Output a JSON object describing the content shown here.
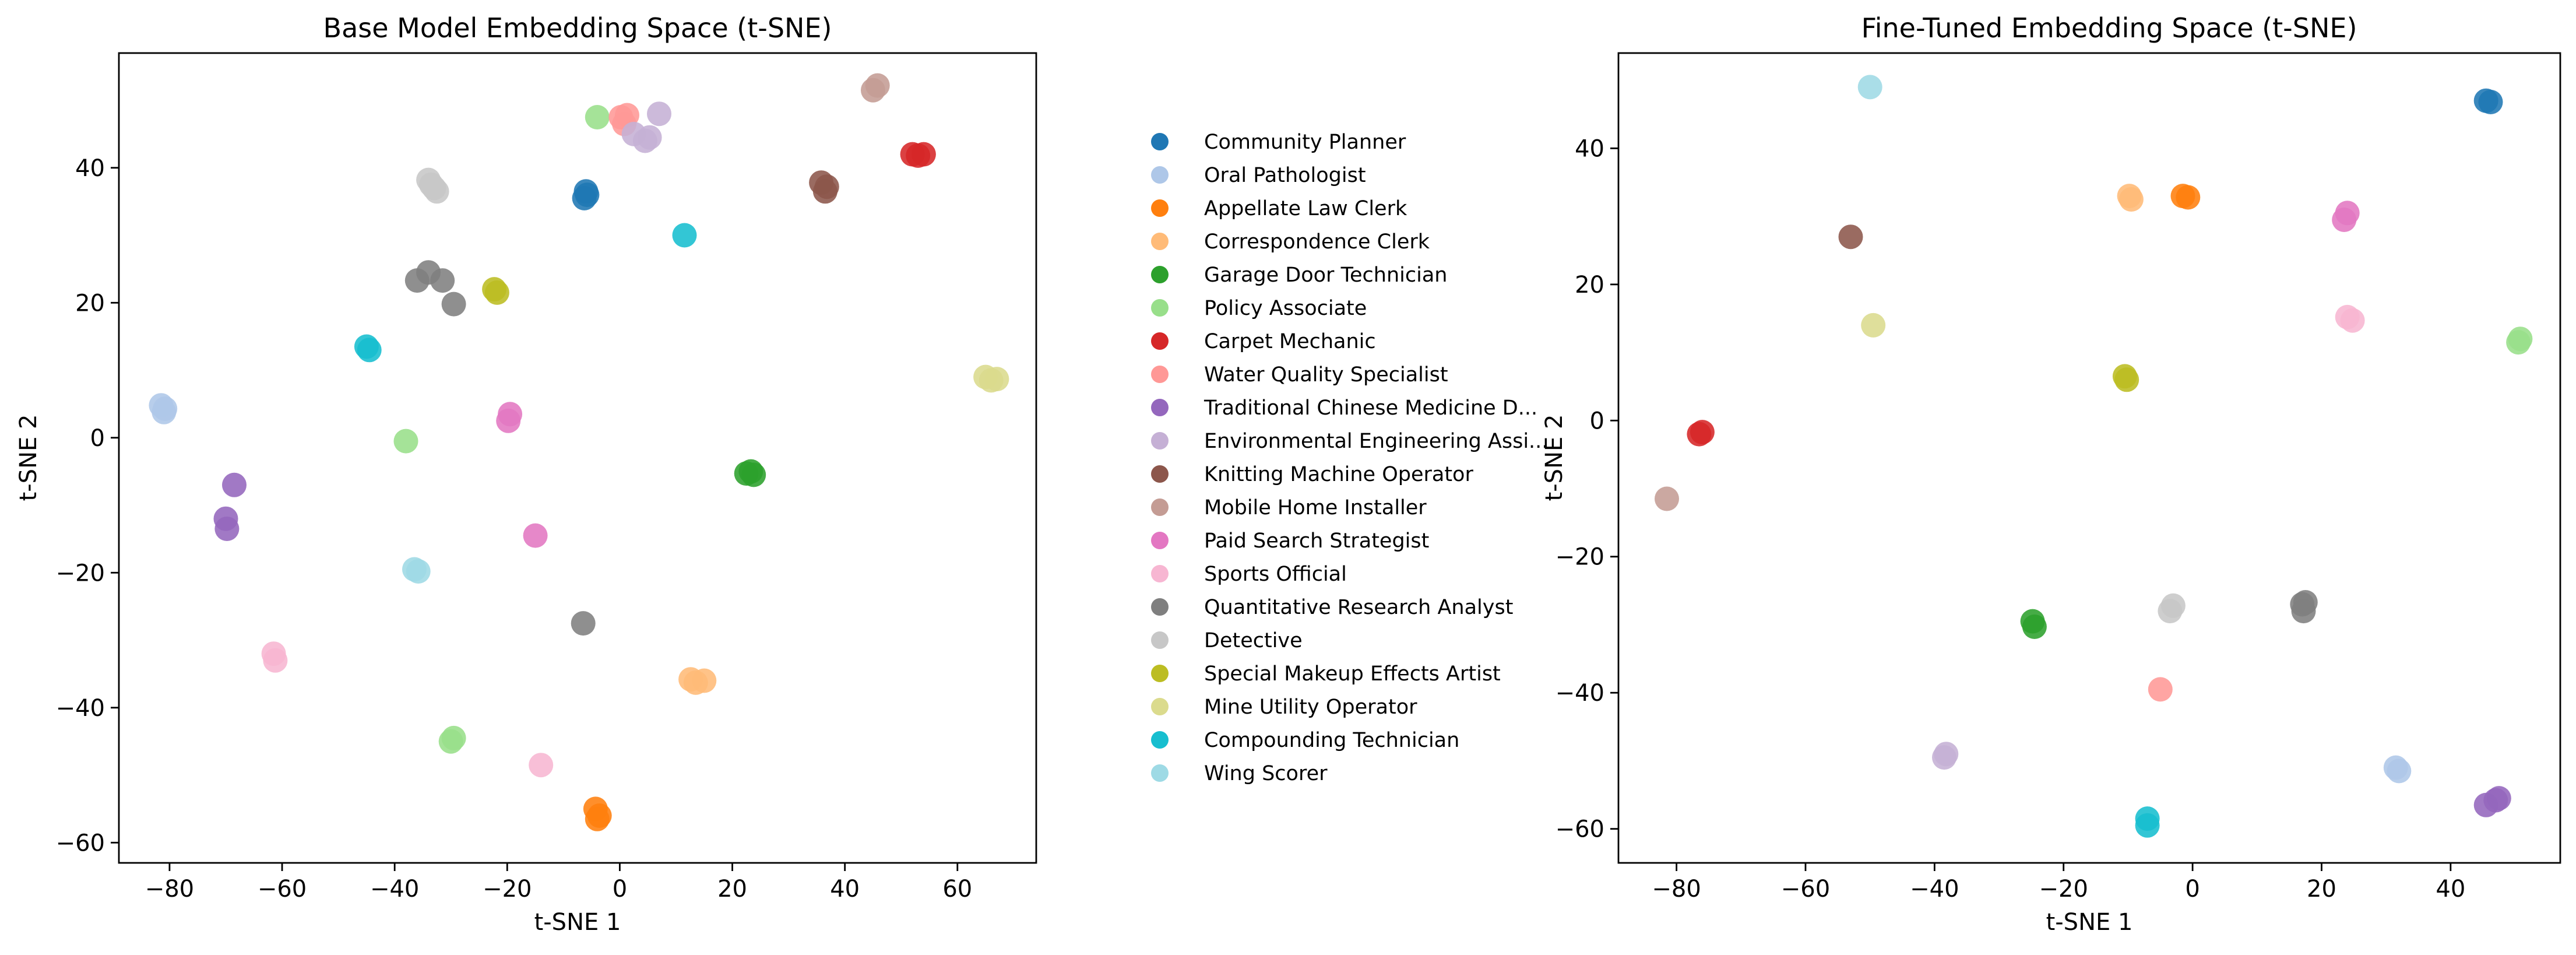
{
  "chart_data": [
    {
      "type": "scatter",
      "title": "Base Model Embedding Space (t-SNE)",
      "xlabel": "t-SNE 1",
      "ylabel": "t-SNE 2",
      "xlim": [
        -89,
        74
      ],
      "ylim": [
        -63,
        57
      ],
      "xticks": [
        -80,
        -60,
        -40,
        -20,
        0,
        20,
        40,
        60
      ],
      "yticks": [
        -60,
        -40,
        -20,
        0,
        20,
        40
      ],
      "xtick_labels": [
        "−80",
        "−60",
        "−40",
        "−20",
        "0",
        "20",
        "40",
        "60"
      ],
      "ytick_labels": [
        "−60",
        "−40",
        "−20",
        "0",
        "20",
        "40"
      ],
      "grid": false,
      "series": [
        {
          "name": "Community Planner",
          "color": "#1f77b4",
          "points": [
            [
              -6.3,
              35.5
            ],
            [
              -6.0,
              36.5
            ],
            [
              -5.8,
              36.0
            ]
          ]
        },
        {
          "name": "Oral Pathologist",
          "color": "#aec7e8",
          "points": [
            [
              -81.5,
              4.8
            ],
            [
              -81.0,
              3.8
            ],
            [
              -80.8,
              4.3
            ]
          ]
        },
        {
          "name": "Appellate Law Clerk",
          "color": "#ff7f0e",
          "points": [
            [
              -4.3,
              -55.0
            ],
            [
              -4.0,
              -56.5
            ],
            [
              -3.6,
              -56.0
            ]
          ]
        },
        {
          "name": "Correspondence Clerk",
          "color": "#ffbb78",
          "points": [
            [
              12.6,
              -35.8
            ],
            [
              13.5,
              -36.3
            ],
            [
              15.0,
              -36.0
            ]
          ]
        },
        {
          "name": "Garage Door Technician",
          "color": "#2ca02c",
          "points": [
            [
              22.5,
              -5.3
            ],
            [
              23.3,
              -5.0
            ],
            [
              23.8,
              -5.5
            ]
          ]
        },
        {
          "name": "Policy Associate",
          "color": "#98df8a",
          "points": [
            [
              -4.0,
              47.5
            ],
            [
              -38.0,
              -0.5
            ],
            [
              -30.0,
              -45.0
            ],
            [
              -29.5,
              -44.5
            ]
          ]
        },
        {
          "name": "Carpet Mechanic",
          "color": "#d62728",
          "points": [
            [
              52.0,
              42.0
            ],
            [
              53.0,
              41.8
            ],
            [
              54.0,
              42.0
            ]
          ]
        },
        {
          "name": "Water Quality Specialist",
          "color": "#ff9896",
          "points": [
            [
              0.2,
              47.5
            ],
            [
              0.8,
              46.5
            ],
            [
              1.3,
              47.8
            ]
          ]
        },
        {
          "name": "Traditional Chinese Medicine D...",
          "color": "#9467bd",
          "points": [
            [
              -70.0,
              -12.0
            ],
            [
              -69.8,
              -13.5
            ],
            [
              -68.5,
              -7.0
            ]
          ]
        },
        {
          "name": "Environmental Engineering Assi...",
          "color": "#c5b0d5",
          "points": [
            [
              2.5,
              45.0
            ],
            [
              4.5,
              44.0
            ],
            [
              5.3,
              44.5
            ],
            [
              7.0,
              48.0
            ]
          ]
        },
        {
          "name": "Knitting Machine Operator",
          "color": "#8c564b",
          "points": [
            [
              35.8,
              37.8
            ],
            [
              36.5,
              36.5
            ],
            [
              36.8,
              37.2
            ]
          ]
        },
        {
          "name": "Mobile Home Installer",
          "color": "#c49c94",
          "points": [
            [
              45.0,
              51.5
            ],
            [
              45.8,
              52.2
            ]
          ]
        },
        {
          "name": "Paid Search Strategist",
          "color": "#e377c2",
          "points": [
            [
              -19.5,
              3.5
            ],
            [
              -19.8,
              2.5
            ],
            [
              -15.0,
              -14.5
            ]
          ]
        },
        {
          "name": "Sports Official",
          "color": "#f7b6d2",
          "points": [
            [
              -61.5,
              -32.0
            ],
            [
              -61.2,
              -33.0
            ],
            [
              -14.0,
              -48.5
            ]
          ]
        },
        {
          "name": "Quantitative Research Analyst",
          "color": "#7f7f7f",
          "points": [
            [
              -36.0,
              23.3
            ],
            [
              -34.0,
              24.5
            ],
            [
              -31.5,
              23.3
            ],
            [
              -29.5,
              19.8
            ],
            [
              -6.5,
              -27.5
            ]
          ]
        },
        {
          "name": "Detective",
          "color": "#c7c7c7",
          "points": [
            [
              -34.0,
              38.2
            ],
            [
              -33.0,
              37.0
            ],
            [
              -32.5,
              36.5
            ],
            [
              -33.5,
              37.5
            ]
          ]
        },
        {
          "name": "Special Makeup Effects Artist",
          "color": "#bcbd22",
          "points": [
            [
              -22.3,
              22.0
            ],
            [
              -21.8,
              21.5
            ]
          ]
        },
        {
          "name": "Mine Utility Operator",
          "color": "#dbdb8d",
          "points": [
            [
              65.0,
              9.0
            ],
            [
              66.0,
              8.5
            ],
            [
              67.0,
              8.7
            ]
          ]
        },
        {
          "name": "Compounding Technician",
          "color": "#17becf",
          "points": [
            [
              -45.0,
              13.5
            ],
            [
              -44.5,
              13.0
            ],
            [
              11.5,
              30.0
            ]
          ]
        },
        {
          "name": "Wing Scorer",
          "color": "#9edae5",
          "points": [
            [
              -36.5,
              -19.5
            ],
            [
              -35.8,
              -19.8
            ]
          ]
        }
      ]
    },
    {
      "type": "scatter",
      "title": "Fine-Tuned Embedding Space (t-SNE)",
      "xlabel": "t-SNE 1",
      "ylabel": "t-SNE 2",
      "xlim": [
        -89,
        57
      ],
      "ylim": [
        -65,
        54
      ],
      "xticks": [
        -80,
        -60,
        -40,
        -20,
        0,
        20,
        40
      ],
      "yticks": [
        -60,
        -40,
        -20,
        0,
        20,
        40
      ],
      "xtick_labels": [
        "−80",
        "−60",
        "−40",
        "−20",
        "0",
        "20",
        "40"
      ],
      "ytick_labels": [
        "−60",
        "−40",
        "−20",
        "0",
        "20",
        "40"
      ],
      "grid": false,
      "series": [
        {
          "name": "Community Planner",
          "color": "#1f77b4",
          "points": [
            [
              45.5,
              47.0
            ],
            [
              46.2,
              46.8
            ]
          ]
        },
        {
          "name": "Oral Pathologist",
          "color": "#aec7e8",
          "points": [
            [
              31.5,
              -51.0
            ],
            [
              32.0,
              -51.5
            ]
          ]
        },
        {
          "name": "Appellate Law Clerk",
          "color": "#ff7f0e",
          "points": [
            [
              -1.5,
              33.0
            ],
            [
              -0.7,
              32.8
            ]
          ]
        },
        {
          "name": "Correspondence Clerk",
          "color": "#ffbb78",
          "points": [
            [
              -9.8,
              33.0
            ],
            [
              -9.5,
              32.5
            ]
          ]
        },
        {
          "name": "Garage Door Technician",
          "color": "#2ca02c",
          "points": [
            [
              -24.8,
              -29.5
            ],
            [
              -24.5,
              -30.3
            ]
          ]
        },
        {
          "name": "Policy Associate",
          "color": "#98df8a",
          "points": [
            [
              50.5,
              11.5
            ],
            [
              50.8,
              12.0
            ]
          ]
        },
        {
          "name": "Carpet Mechanic",
          "color": "#d62728",
          "points": [
            [
              -76.5,
              -2.0
            ],
            [
              -76.0,
              -1.7
            ]
          ]
        },
        {
          "name": "Water Quality Specialist",
          "color": "#ff9896",
          "points": [
            [
              -5.0,
              -39.5
            ]
          ]
        },
        {
          "name": "Traditional Chinese Medicine D...",
          "color": "#9467bd",
          "points": [
            [
              45.5,
              -56.5
            ],
            [
              47.0,
              -55.8
            ],
            [
              47.5,
              -55.5
            ]
          ]
        },
        {
          "name": "Environmental Engineering Assi...",
          "color": "#c5b0d5",
          "points": [
            [
              -38.5,
              -49.5
            ],
            [
              -38.2,
              -49.0
            ]
          ]
        },
        {
          "name": "Knitting Machine Operator",
          "color": "#8c564b",
          "points": [
            [
              -53.0,
              27.0
            ]
          ]
        },
        {
          "name": "Mobile Home Installer",
          "color": "#c49c94",
          "points": [
            [
              -81.5,
              -11.5
            ]
          ]
        },
        {
          "name": "Paid Search Strategist",
          "color": "#e377c2",
          "points": [
            [
              23.5,
              29.5
            ],
            [
              24.0,
              30.5
            ]
          ]
        },
        {
          "name": "Sports Official",
          "color": "#f7b6d2",
          "points": [
            [
              24.0,
              15.2
            ],
            [
              24.8,
              14.7
            ]
          ]
        },
        {
          "name": "Quantitative Research Analyst",
          "color": "#7f7f7f",
          "points": [
            [
              17.0,
              -27.0
            ],
            [
              17.2,
              -28.0
            ],
            [
              17.5,
              -26.7
            ]
          ]
        },
        {
          "name": "Detective",
          "color": "#c7c7c7",
          "points": [
            [
              -3.5,
              -28.0
            ],
            [
              -3.0,
              -27.2
            ]
          ]
        },
        {
          "name": "Special Makeup Effects Artist",
          "color": "#bcbd22",
          "points": [
            [
              -10.5,
              6.5
            ],
            [
              -10.2,
              6.0
            ]
          ]
        },
        {
          "name": "Mine Utility Operator",
          "color": "#dbdb8d",
          "points": [
            [
              -49.5,
              14.0
            ]
          ]
        },
        {
          "name": "Compounding Technician",
          "color": "#17becf",
          "points": [
            [
              -7.0,
              -58.5
            ],
            [
              -7.0,
              -59.5
            ]
          ]
        },
        {
          "name": "Wing Scorer",
          "color": "#9edae5",
          "points": [
            [
              -50.0,
              49.0
            ]
          ]
        }
      ]
    }
  ],
  "legend": {
    "placement": "center, between the two plots",
    "entries": [
      "Community Planner",
      "Oral Pathologist",
      "Appellate Law Clerk",
      "Correspondence Clerk",
      "Garage Door Technician",
      "Policy Associate",
      "Carpet Mechanic",
      "Water Quality Specialist",
      "Traditional Chinese Medicine D...",
      "Environmental Engineering Assi...",
      "Knitting Machine Operator",
      "Mobile Home Installer",
      "Paid Search Strategist",
      "Sports Official",
      "Quantitative Research Analyst",
      "Detective",
      "Special Makeup Effects Artist",
      "Mine Utility Operator",
      "Compounding Technician",
      "Wing Scorer"
    ],
    "colors": [
      "#1f77b4",
      "#aec7e8",
      "#ff7f0e",
      "#ffbb78",
      "#2ca02c",
      "#98df8a",
      "#d62728",
      "#ff9896",
      "#9467bd",
      "#c5b0d5",
      "#8c564b",
      "#c49c94",
      "#e377c2",
      "#f7b6d2",
      "#7f7f7f",
      "#c7c7c7",
      "#bcbd22",
      "#dbdb8d",
      "#17becf",
      "#9edae5"
    ]
  }
}
